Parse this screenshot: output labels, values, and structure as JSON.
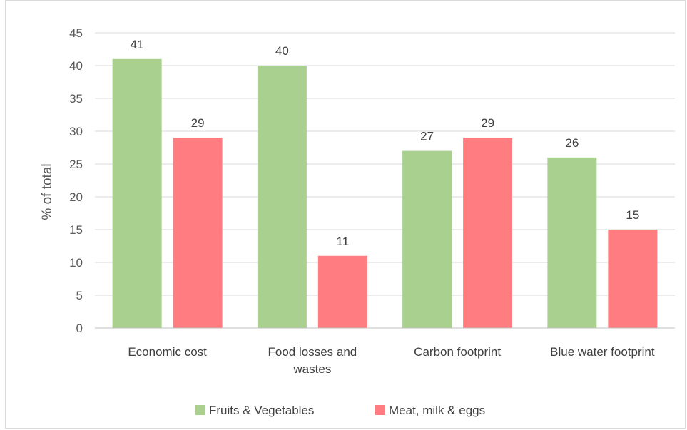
{
  "chart_data": {
    "type": "bar",
    "title": "",
    "xlabel": "",
    "ylabel": "% of total",
    "ylim": [
      0,
      45
    ],
    "yticks": [
      0,
      5,
      10,
      15,
      20,
      25,
      30,
      35,
      40,
      45
    ],
    "grid": true,
    "legend_position": "bottom",
    "categories": [
      [
        "Economic cost"
      ],
      [
        "Food losses and",
        "wastes"
      ],
      [
        "Carbon footprint"
      ],
      [
        "Blue water footprint"
      ]
    ],
    "series": [
      {
        "name": "Fruits & Vegetables",
        "color": "#a9d08e",
        "values": [
          41,
          40,
          27,
          26
        ]
      },
      {
        "name": "Meat, milk & eggs",
        "color": "#ff7c80",
        "values": [
          29,
          11,
          29,
          15
        ]
      }
    ]
  }
}
